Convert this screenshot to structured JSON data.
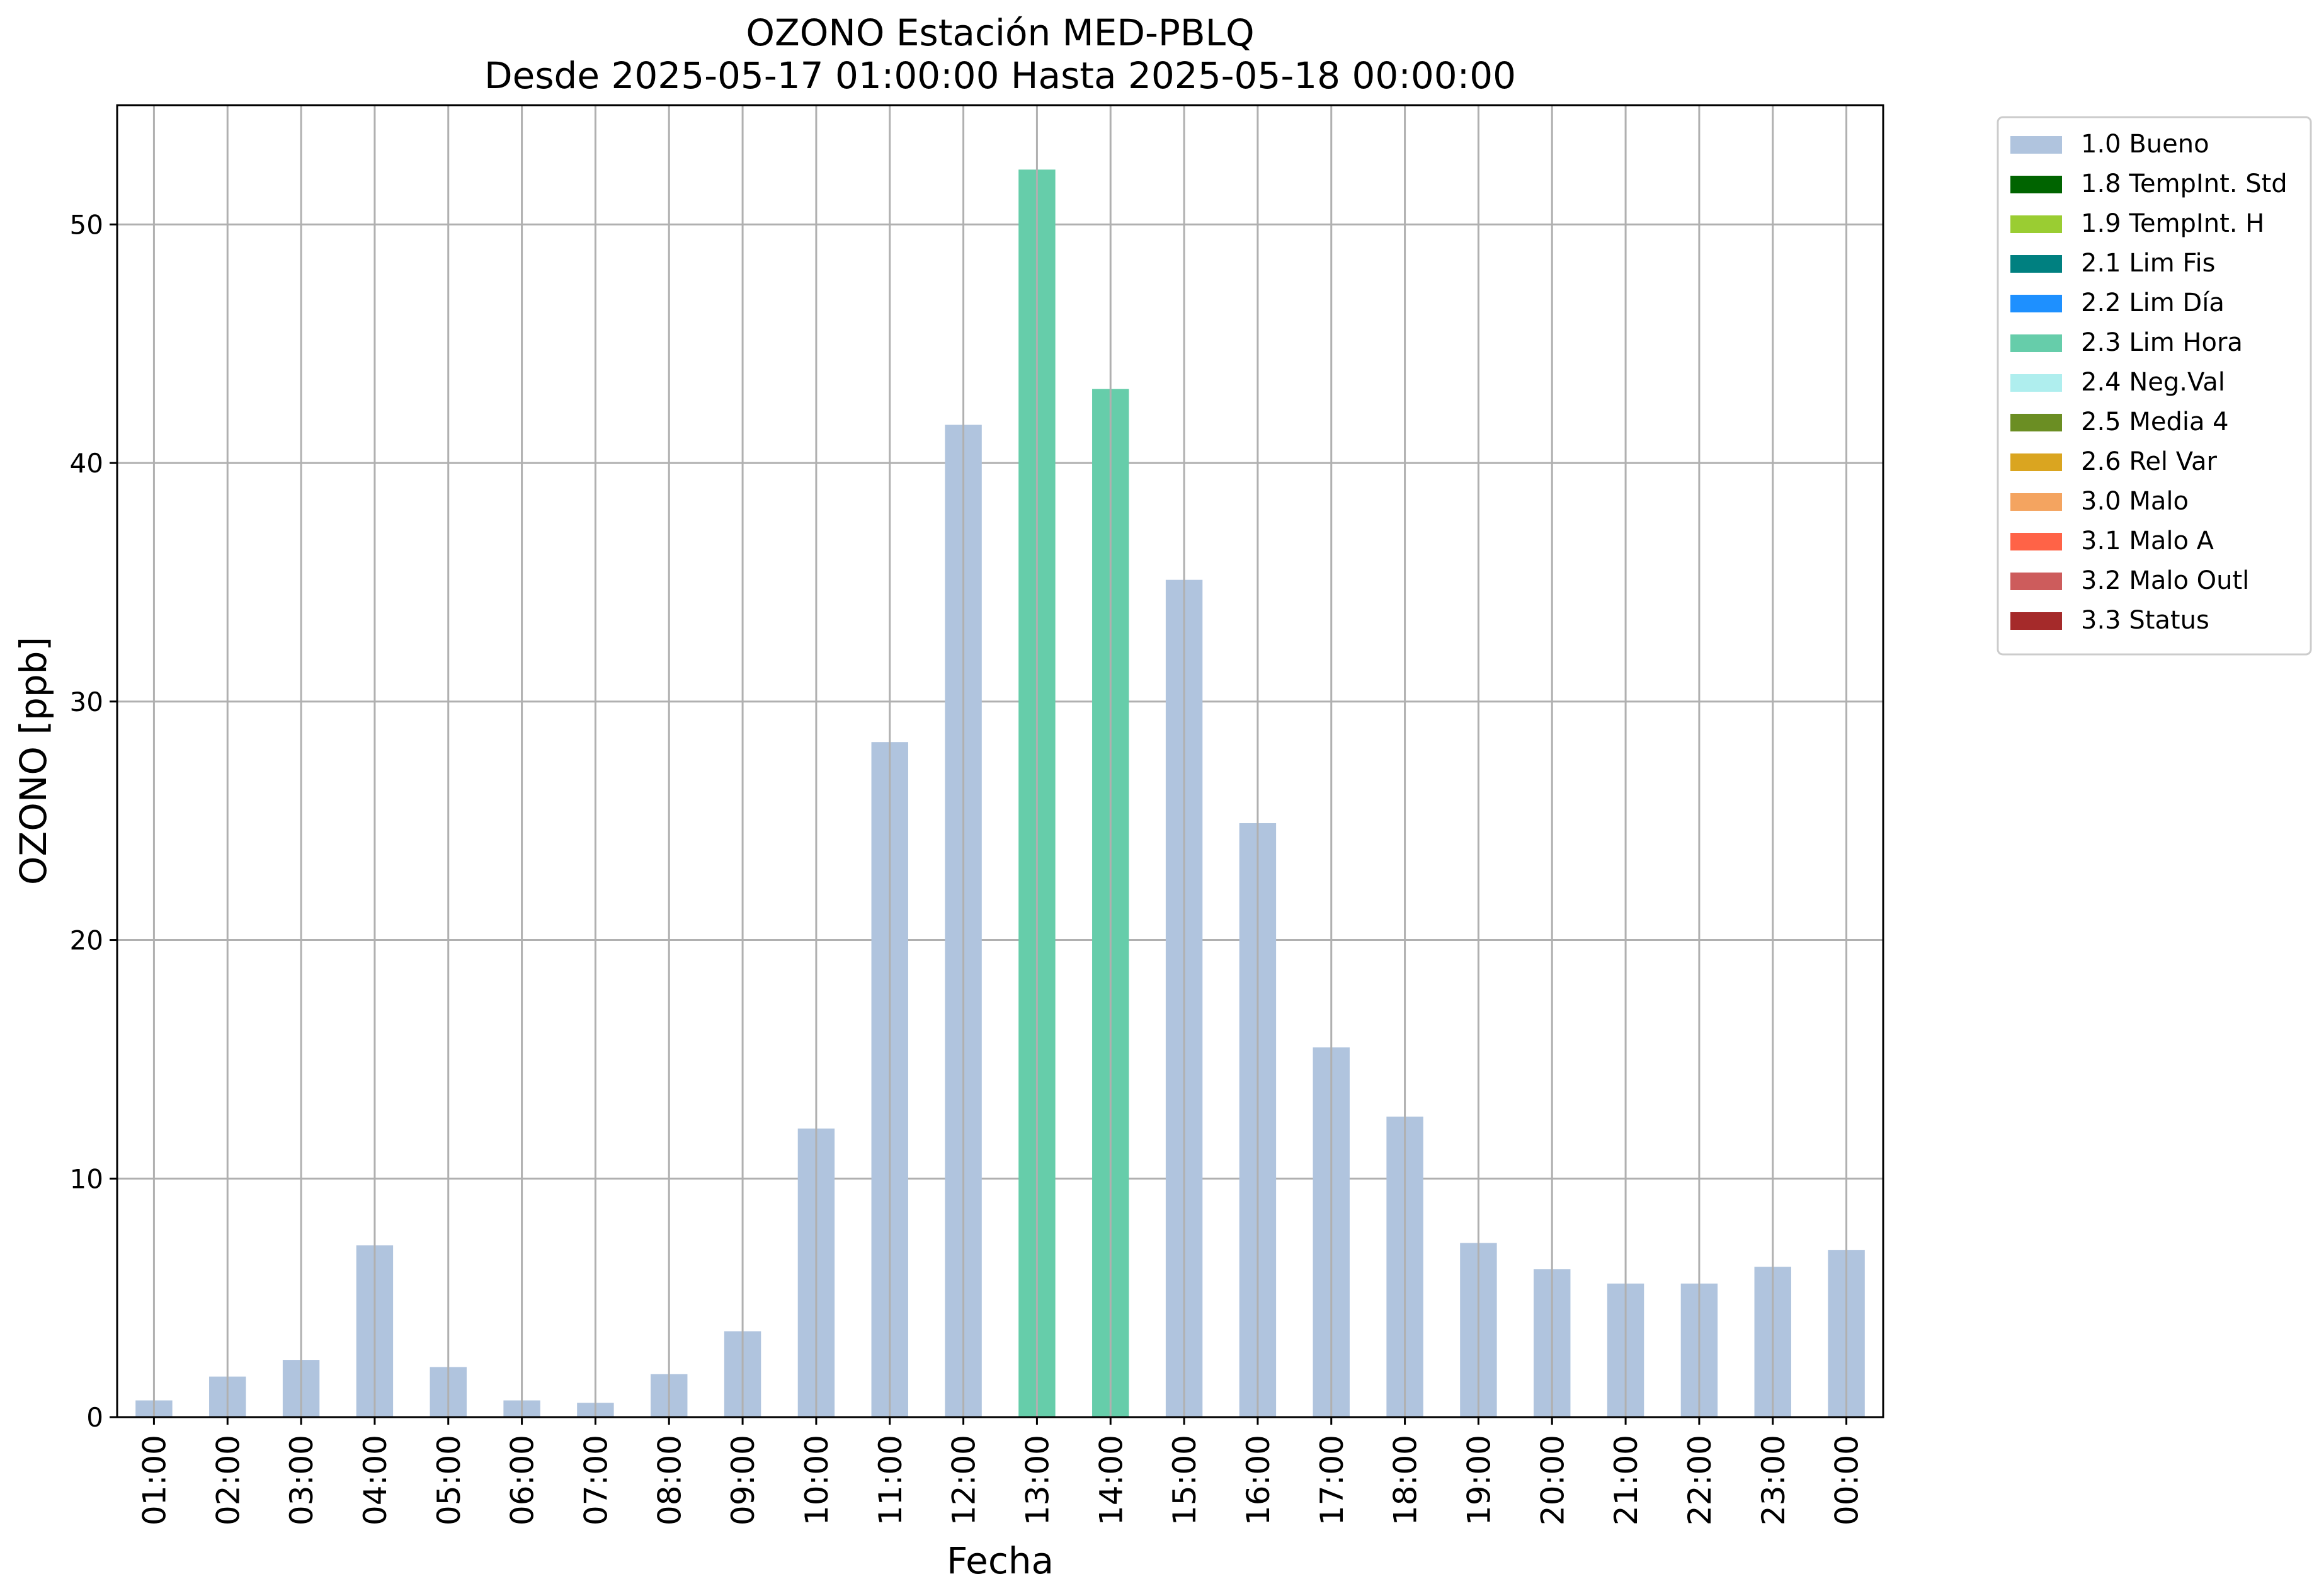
{
  "chart_data": {
    "type": "bar",
    "title": "OZONO Estación MED-PBLQ",
    "subtitle": "Desde 2025-05-17 01:00:00 Hasta 2025-05-18 00:00:00",
    "xlabel": "Fecha",
    "ylabel": "OZONO [ppb]",
    "ylim": [
      0,
      55
    ],
    "yticks": [
      "0",
      "10",
      "20",
      "30",
      "40",
      "50"
    ],
    "grid": true,
    "legend_position": "outside-top-right",
    "categories": [
      "01:00",
      "02:00",
      "03:00",
      "04:00",
      "05:00",
      "06:00",
      "07:00",
      "08:00",
      "09:00",
      "10:00",
      "11:00",
      "12:00",
      "13:00",
      "14:00",
      "15:00",
      "16:00",
      "17:00",
      "18:00",
      "19:00",
      "20:00",
      "21:00",
      "22:00",
      "23:00",
      "00:00"
    ],
    "values": [
      0.7,
      1.7,
      2.4,
      7.2,
      2.1,
      0.7,
      0.6,
      1.8,
      3.6,
      12.1,
      28.3,
      41.6,
      52.3,
      43.1,
      35.1,
      24.9,
      15.5,
      12.6,
      7.3,
      6.2,
      5.6,
      5.6,
      6.3,
      7.0
    ],
    "bar_flags": [
      "1.0 Bueno",
      "1.0 Bueno",
      "1.0 Bueno",
      "1.0 Bueno",
      "1.0 Bueno",
      "1.0 Bueno",
      "1.0 Bueno",
      "1.0 Bueno",
      "1.0 Bueno",
      "1.0 Bueno",
      "1.0 Bueno",
      "1.0 Bueno",
      "2.3 Lim Hora",
      "2.3 Lim Hora",
      "1.0 Bueno",
      "1.0 Bueno",
      "1.0 Bueno",
      "1.0 Bueno",
      "1.0 Bueno",
      "1.0 Bueno",
      "1.0 Bueno",
      "1.0 Bueno",
      "1.0 Bueno",
      "1.0 Bueno"
    ],
    "legend": [
      {
        "label": "1.0 Bueno",
        "color": "#b0c4de"
      },
      {
        "label": "1.8 TempInt. Std",
        "color": "#006400"
      },
      {
        "label": "1.9 TempInt. H",
        "color": "#9acd32"
      },
      {
        "label": "2.1 Lim Fis",
        "color": "#008080"
      },
      {
        "label": "2.2 Lim Día",
        "color": "#1e90ff"
      },
      {
        "label": "2.3 Lim Hora",
        "color": "#66cdaa"
      },
      {
        "label": "2.4 Neg.Val",
        "color": "#afeeee"
      },
      {
        "label": "2.5 Media 4",
        "color": "#6b8e23"
      },
      {
        "label": "2.6 Rel Var",
        "color": "#daa520"
      },
      {
        "label": "3.0 Malo",
        "color": "#f4a460"
      },
      {
        "label": "3.1 Malo A",
        "color": "#ff6347"
      },
      {
        "label": "3.2 Malo Outl",
        "color": "#cd5c5c"
      },
      {
        "label": "3.3 Status",
        "color": "#a52a2a"
      }
    ]
  }
}
